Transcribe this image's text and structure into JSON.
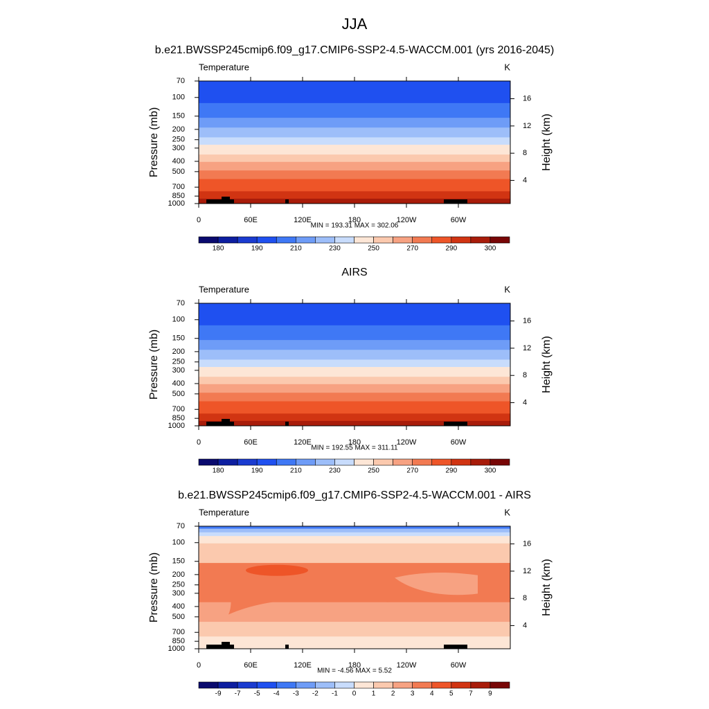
{
  "title": "JJA",
  "chart_data": [
    {
      "type": "contour",
      "title": "b.e21.BWSSP245cmip6.f09_g17.CMIP6-SSP2-4.5-WACCM.001 (yrs 2016-2045)",
      "left_label": "Temperature",
      "right_label": "K",
      "ylabel": "Pressure (mb)",
      "y2label": "Height (km)",
      "stats": "MIN = 193.31  MAX = 302.06",
      "xlim": [
        0,
        360
      ],
      "xticks": [
        0,
        {
          "value": 60,
          "label": "60E"
        },
        {
          "value": 120,
          "label": "120E"
        },
        180,
        {
          "value": 240,
          "label": "120W"
        },
        {
          "value": 300,
          "label": "60W"
        }
      ],
      "ylim": [
        1000,
        70
      ],
      "log_y": true,
      "yticks": [
        70,
        100,
        150,
        200,
        250,
        300,
        400,
        500,
        700,
        850,
        1000
      ],
      "y2lim": [
        0.6,
        18.6
      ],
      "y2ticks": [
        4,
        8,
        12,
        16
      ],
      "colorbar": {
        "levels": [
          180,
          null,
          190,
          null,
          210,
          null,
          230,
          null,
          250,
          null,
          270,
          null,
          290,
          null,
          300
        ],
        "colors": [
          "#0a0a6e",
          "#0d1ea0",
          "#1a3bd0",
          "#1f50f0",
          "#3f78f5",
          "#6e9cf7",
          "#9dbef9",
          "#c8dcfc",
          "#fde6d6",
          "#fbc9ae",
          "#f7a282",
          "#f27a52",
          "#ee5528",
          "#d13412",
          "#a81c0a",
          "#780606"
        ]
      }
    },
    {
      "type": "contour",
      "title": "AIRS",
      "left_label": "Temperature",
      "right_label": "K",
      "ylabel": "Pressure (mb)",
      "y2label": "Height (km)",
      "stats": "MIN = 192.55  MAX = 311.11",
      "xlim": [
        0,
        360
      ],
      "xticks": [
        0,
        {
          "value": 60,
          "label": "60E"
        },
        {
          "value": 120,
          "label": "120E"
        },
        180,
        {
          "value": 240,
          "label": "120W"
        },
        {
          "value": 300,
          "label": "60W"
        }
      ],
      "ylim": [
        1000,
        70
      ],
      "log_y": true,
      "yticks": [
        70,
        100,
        150,
        200,
        250,
        300,
        400,
        500,
        700,
        850,
        1000
      ],
      "y2lim": [
        0.6,
        18.6
      ],
      "y2ticks": [
        4,
        8,
        12,
        16
      ],
      "colorbar": {
        "levels": [
          180,
          null,
          190,
          null,
          210,
          null,
          230,
          null,
          250,
          null,
          270,
          null,
          290,
          null,
          300
        ],
        "colors": [
          "#0a0a6e",
          "#0d1ea0",
          "#1a3bd0",
          "#1f50f0",
          "#3f78f5",
          "#6e9cf7",
          "#9dbef9",
          "#c8dcfc",
          "#fde6d6",
          "#fbc9ae",
          "#f7a282",
          "#f27a52",
          "#ee5528",
          "#d13412",
          "#a81c0a",
          "#780606"
        ]
      }
    },
    {
      "type": "contour",
      "title": "b.e21.BWSSP245cmip6.f09_g17.CMIP6-SSP2-4.5-WACCM.001 - AIRS",
      "left_label": "Temperature",
      "right_label": "K",
      "ylabel": "Pressure (mb)",
      "y2label": "Height (km)",
      "stats": "MIN =  -4.56  MAX =   5.52",
      "xlim": [
        0,
        360
      ],
      "xticks": [
        0,
        {
          "value": 60,
          "label": "60E"
        },
        {
          "value": 120,
          "label": "120E"
        },
        180,
        {
          "value": 240,
          "label": "120W"
        },
        {
          "value": 300,
          "label": "60W"
        }
      ],
      "ylim": [
        1000,
        70
      ],
      "log_y": true,
      "yticks": [
        70,
        100,
        150,
        200,
        250,
        300,
        400,
        500,
        700,
        850,
        1000
      ],
      "y2lim": [
        0.6,
        18.6
      ],
      "y2ticks": [
        4,
        8,
        12,
        16
      ],
      "colorbar": {
        "levels": [
          -9,
          -7,
          -5,
          -4,
          -3,
          -2,
          -1,
          0,
          1,
          2,
          3,
          4,
          5,
          7,
          9
        ],
        "colors": [
          "#0a0a6e",
          "#0d1ea0",
          "#1a3bd0",
          "#1f50f0",
          "#3f78f5",
          "#6e9cf7",
          "#9dbef9",
          "#c8dcfc",
          "#fde6d6",
          "#fbc9ae",
          "#f7a282",
          "#f27a52",
          "#ee5528",
          "#d13412",
          "#a81c0a",
          "#780606"
        ]
      }
    }
  ]
}
